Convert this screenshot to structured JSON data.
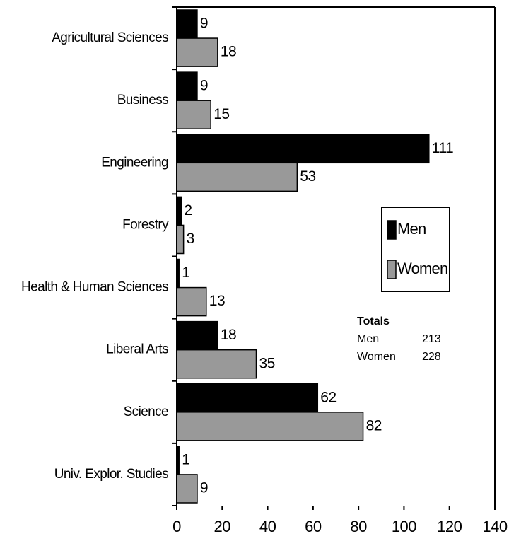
{
  "chart_data": {
    "type": "bar",
    "orientation": "horizontal",
    "categories": [
      "Agricultural Sciences",
      "Business",
      "Engineering",
      "Forestry",
      "Health & Human Sciences",
      "Liberal Arts",
      "Science",
      "Univ. Explor. Studies"
    ],
    "series": [
      {
        "name": "Men",
        "color": "#000000",
        "values": [
          9,
          9,
          111,
          2,
          1,
          18,
          62,
          1
        ]
      },
      {
        "name": "Women",
        "color": "#999999",
        "values": [
          18,
          15,
          53,
          3,
          13,
          35,
          82,
          9
        ]
      }
    ],
    "xlim": [
      0,
      140
    ],
    "xticks": [
      0,
      20,
      40,
      60,
      80,
      100,
      120,
      140
    ],
    "grid": false,
    "legend": "right",
    "annotation": {
      "title": "Totals",
      "rows": [
        [
          "Men",
          213
        ],
        [
          "Women",
          228
        ]
      ]
    }
  }
}
